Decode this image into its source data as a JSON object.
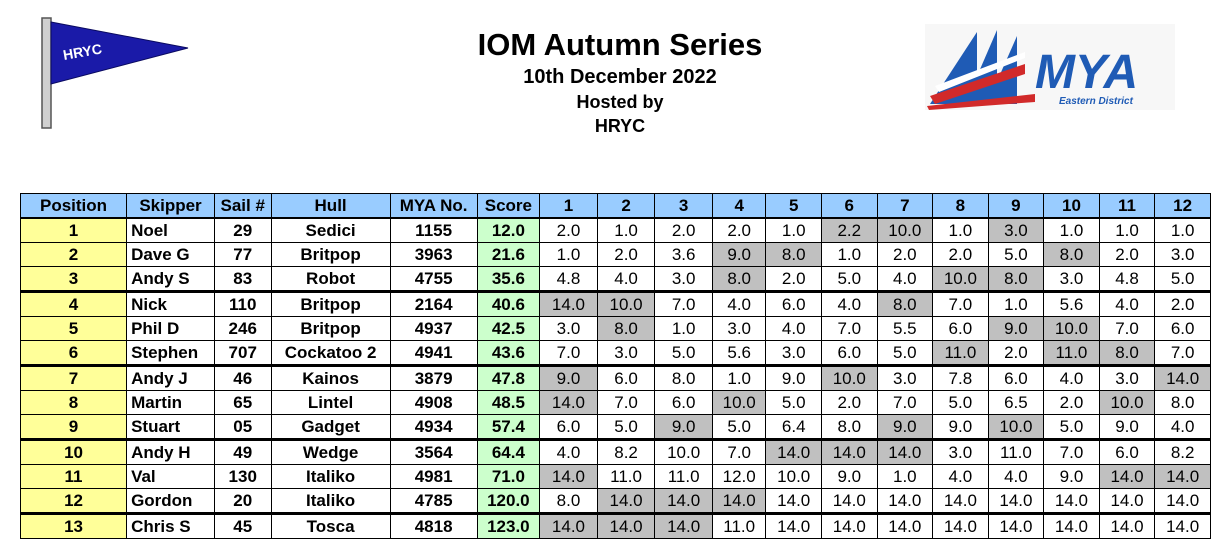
{
  "header": {
    "title": "IOM Autumn Series",
    "date": "10th December 2022",
    "hosted_by_label": "Hosted by",
    "host": "HRYC"
  },
  "logos": {
    "left_flag_text": "HRYC",
    "right_logo_text": "MYA",
    "right_logo_subtext": "Eastern District",
    "brand_blue": "#1f5bb5",
    "brand_red": "#d12a2a"
  },
  "colors": {
    "header_bg": "#99ccff",
    "position_bg": "#ffff99",
    "score_bg": "#ccffcc",
    "discard_bg": "#c0c0c0"
  },
  "table": {
    "columns": [
      "Position",
      "Skipper",
      "Sail #",
      "Hull",
      "MYA No.",
      "Score",
      "1",
      "2",
      "3",
      "4",
      "5",
      "6",
      "7",
      "8",
      "9",
      "10",
      "11",
      "12"
    ],
    "rows": [
      {
        "position": "1",
        "skipper": "Noel",
        "sail": "29",
        "hull": "Sedici",
        "mya": "1155",
        "score": "12.0",
        "races": [
          "2.0",
          "1.0",
          "2.0",
          "2.0",
          "1.0",
          "2.2",
          "10.0",
          "1.0",
          "3.0",
          "1.0",
          "1.0",
          "1.0"
        ],
        "discards": [
          5,
          6,
          8
        ],
        "group_start": false
      },
      {
        "position": "2",
        "skipper": "Dave G",
        "sail": "77",
        "hull": "Britpop",
        "mya": "3963",
        "score": "21.6",
        "races": [
          "1.0",
          "2.0",
          "3.6",
          "9.0",
          "8.0",
          "1.0",
          "2.0",
          "2.0",
          "5.0",
          "8.0",
          "2.0",
          "3.0"
        ],
        "discards": [
          3,
          4,
          9
        ],
        "group_start": false
      },
      {
        "position": "3",
        "skipper": "Andy S",
        "sail": "83",
        "hull": "Robot",
        "mya": "4755",
        "score": "35.6",
        "races": [
          "4.8",
          "4.0",
          "3.0",
          "8.0",
          "2.0",
          "5.0",
          "4.0",
          "10.0",
          "8.0",
          "3.0",
          "4.8",
          "5.0"
        ],
        "discards": [
          3,
          7,
          8
        ],
        "group_start": false
      },
      {
        "position": "4",
        "skipper": "Nick",
        "sail": "110",
        "hull": "Britpop",
        "mya": "2164",
        "score": "40.6",
        "races": [
          "14.0",
          "10.0",
          "7.0",
          "4.0",
          "6.0",
          "4.0",
          "8.0",
          "7.0",
          "1.0",
          "5.6",
          "4.0",
          "2.0"
        ],
        "discards": [
          0,
          1,
          6
        ],
        "group_start": true
      },
      {
        "position": "5",
        "skipper": "Phil D",
        "sail": "246",
        "hull": "Britpop",
        "mya": "4937",
        "score": "42.5",
        "races": [
          "3.0",
          "8.0",
          "1.0",
          "3.0",
          "4.0",
          "7.0",
          "5.5",
          "6.0",
          "9.0",
          "10.0",
          "7.0",
          "6.0"
        ],
        "discards": [
          1,
          8,
          9
        ],
        "group_start": false
      },
      {
        "position": "6",
        "skipper": "Stephen",
        "sail": "707",
        "hull": "Cockatoo 2",
        "mya": "4941",
        "score": "43.6",
        "races": [
          "7.0",
          "3.0",
          "5.0",
          "5.6",
          "3.0",
          "6.0",
          "5.0",
          "11.0",
          "2.0",
          "11.0",
          "8.0",
          "7.0"
        ],
        "discards": [
          7,
          9,
          10
        ],
        "group_start": false
      },
      {
        "position": "7",
        "skipper": "Andy J",
        "sail": "46",
        "hull": "Kainos",
        "mya": "3879",
        "score": "47.8",
        "races": [
          "9.0",
          "6.0",
          "8.0",
          "1.0",
          "9.0",
          "10.0",
          "3.0",
          "7.8",
          "6.0",
          "4.0",
          "3.0",
          "14.0"
        ],
        "discards": [
          0,
          5,
          11
        ],
        "group_start": true
      },
      {
        "position": "8",
        "skipper": "Martin",
        "sail": "65",
        "hull": "Lintel",
        "mya": "4908",
        "score": "48.5",
        "races": [
          "14.0",
          "7.0",
          "6.0",
          "10.0",
          "5.0",
          "2.0",
          "7.0",
          "5.0",
          "6.5",
          "2.0",
          "10.0",
          "8.0"
        ],
        "discards": [
          0,
          3,
          10
        ],
        "group_start": false
      },
      {
        "position": "9",
        "skipper": "Stuart",
        "sail": "05",
        "hull": "Gadget",
        "mya": "4934",
        "score": "57.4",
        "races": [
          "6.0",
          "5.0",
          "9.0",
          "5.0",
          "6.4",
          "8.0",
          "9.0",
          "9.0",
          "10.0",
          "5.0",
          "9.0",
          "4.0"
        ],
        "discards": [
          2,
          6,
          8
        ],
        "group_start": false
      },
      {
        "position": "10",
        "skipper": "Andy H",
        "sail": "49",
        "hull": "Wedge",
        "mya": "3564",
        "score": "64.4",
        "races": [
          "4.0",
          "8.2",
          "10.0",
          "7.0",
          "14.0",
          "14.0",
          "14.0",
          "3.0",
          "11.0",
          "7.0",
          "6.0",
          "8.2"
        ],
        "discards": [
          4,
          5,
          6
        ],
        "group_start": true
      },
      {
        "position": "11",
        "skipper": "Val",
        "sail": "130",
        "hull": "Italiko",
        "mya": "4981",
        "score": "71.0",
        "races": [
          "14.0",
          "11.0",
          "11.0",
          "12.0",
          "10.0",
          "9.0",
          "1.0",
          "4.0",
          "4.0",
          "9.0",
          "14.0",
          "14.0"
        ],
        "discards": [
          0,
          10,
          11
        ],
        "group_start": false
      },
      {
        "position": "12",
        "skipper": "Gordon",
        "sail": "20",
        "hull": "Italiko",
        "mya": "4785",
        "score": "120.0",
        "races": [
          "8.0",
          "14.0",
          "14.0",
          "14.0",
          "14.0",
          "14.0",
          "14.0",
          "14.0",
          "14.0",
          "14.0",
          "14.0",
          "14.0"
        ],
        "discards": [
          1,
          2,
          3
        ],
        "group_start": false
      },
      {
        "position": "13",
        "skipper": "Chris S",
        "sail": "45",
        "hull": "Tosca",
        "mya": "4818",
        "score": "123.0",
        "races": [
          "14.0",
          "14.0",
          "14.0",
          "11.0",
          "14.0",
          "14.0",
          "14.0",
          "14.0",
          "14.0",
          "14.0",
          "14.0",
          "14.0"
        ],
        "discards": [
          0,
          1,
          2
        ],
        "group_start": true
      }
    ]
  }
}
